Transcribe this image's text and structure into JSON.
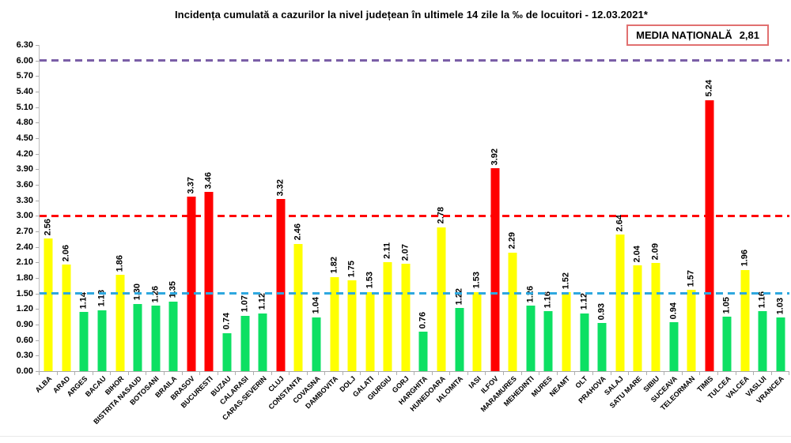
{
  "title": "Incidența cumulată a cazurilor la nivel județean în ultimele 14 zile la ‰ de locuitori - 12.03.2021*",
  "media_box": {
    "label": "MEDIA NAȚIONALĂ",
    "value": "2,81"
  },
  "chart_data": {
    "type": "bar",
    "title": "Incidența cumulată a cazurilor la nivel județean în ultimele 14 zile la ‰ de locuitori - 12.03.2021*",
    "categories": [
      "ALBA",
      "ARAD",
      "ARGES",
      "BACAU",
      "BIHOR",
      "BISTRITA NASAUD",
      "BOTOSANI",
      "BRAILA",
      "BRASOV",
      "BUCURESTI",
      "BUZAU",
      "CALARASI",
      "CARAS-SEVERIN",
      "CLUJ",
      "CONSTANTA",
      "COVASNA",
      "DAMBOVITA",
      "DOLJ",
      "GALATI",
      "GIURGIU",
      "GORJ",
      "HARGHITA",
      "HUNEDOARA",
      "IALOMITA",
      "IASI",
      "ILFOV",
      "MARAMURES",
      "MEHEDINTI",
      "MURES",
      "NEAMT",
      "OLT",
      "PRAHOVA",
      "SALAJ",
      "SATU MARE",
      "SIBIU",
      "SUCEAVA",
      "TELEORMAN",
      "TIMIS",
      "TULCEA",
      "VALCEA",
      "VASLUI",
      "VRANCEA"
    ],
    "values": [
      2.56,
      2.06,
      1.14,
      1.18,
      1.86,
      1.3,
      1.26,
      1.35,
      3.37,
      3.46,
      0.74,
      1.07,
      1.12,
      3.32,
      2.46,
      1.04,
      1.82,
      1.75,
      1.53,
      2.11,
      2.07,
      0.76,
      2.78,
      1.22,
      1.53,
      3.92,
      2.29,
      1.26,
      1.16,
      1.52,
      1.12,
      0.93,
      2.64,
      2.04,
      2.09,
      0.94,
      1.57,
      5.24,
      1.05,
      1.96,
      1.16,
      1.03
    ],
    "xlabel": "",
    "ylabel": "",
    "ylim": [
      0,
      6.3
    ],
    "ytick_step": 0.3,
    "grid": false,
    "legend": false,
    "national_average": 2.81,
    "reference_lines": [
      {
        "value": 6.0,
        "color": "#7b5fa7",
        "name": "ref-line-6.00"
      },
      {
        "value": 3.0,
        "color": "#ff0000",
        "name": "ref-line-3.00"
      },
      {
        "value": 1.5,
        "color": "#2ea8df",
        "name": "ref-line-1.50"
      }
    ],
    "bar_colors": {
      "green": "#0de063",
      "yellow": "#ffff00",
      "red": "#ff0000"
    },
    "color_thresholds": {
      "red_min": 3.0,
      "yellow_min": 1.5
    },
    "axis_color": "#a9a9a9"
  }
}
